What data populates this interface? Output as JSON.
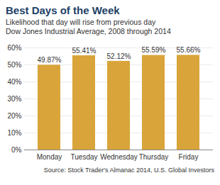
{
  "chart_data": {
    "type": "bar",
    "title": "Best Days of the Week",
    "subtitle": [
      "Likelihood that day will rise from previous day",
      "Dow Jones Industrial Average, 2008 through 2014"
    ],
    "source": "Source: Stock Trader's Almanac 2014, U.S. Global Investors",
    "categories": [
      "Monday",
      "Tuesday",
      "Wednesday",
      "Thursday",
      "Friday"
    ],
    "values": [
      49.87,
      55.41,
      52.12,
      55.59,
      55.66
    ],
    "value_labels": [
      "49.87%",
      "55.41%",
      "52.12%",
      "55.59%",
      "55.66%"
    ],
    "color": "#d9a43a",
    "ylim": [
      0,
      60
    ],
    "yticks": [
      {
        "value": 0,
        "label": "0%"
      },
      {
        "value": 10,
        "label": "10%"
      },
      {
        "value": 20,
        "label": "20%"
      },
      {
        "value": 30,
        "label": "30%"
      },
      {
        "value": 40,
        "label": "40%"
      },
      {
        "value": 50,
        "label": "50%"
      },
      {
        "value": 60,
        "label": "60%"
      }
    ],
    "grid": true,
    "data_labels": true
  }
}
